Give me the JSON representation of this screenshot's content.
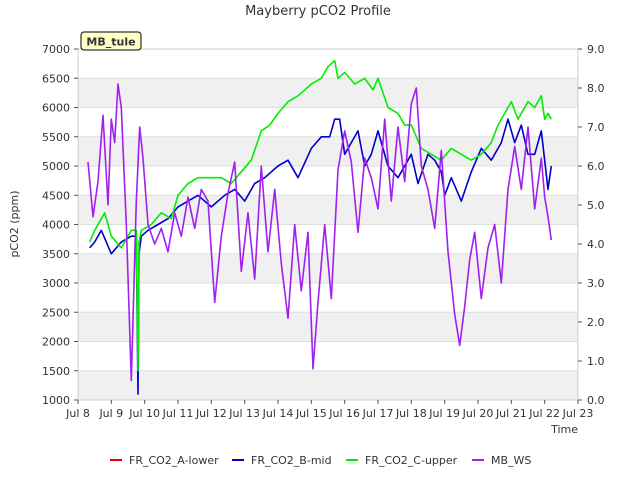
{
  "chart_data": {
    "type": "line",
    "title": "Mayberry pCO2 Profile",
    "xlabel": "Time",
    "ylabel": "pCO2 (ppm)",
    "site_label": "MB_tule",
    "xlim": [
      8,
      23
    ],
    "ylim": [
      1000,
      7000
    ],
    "y2lim": [
      0,
      9
    ],
    "x_ticks": [
      {
        "value": 8,
        "label": "Jul 8"
      },
      {
        "value": 9,
        "label": "Jul 9"
      },
      {
        "value": 10,
        "label": "Jul 10"
      },
      {
        "value": 11,
        "label": "Jul 11"
      },
      {
        "value": 12,
        "label": "Jul 12"
      },
      {
        "value": 13,
        "label": "Jul 13"
      },
      {
        "value": 14,
        "label": "Jul 14"
      },
      {
        "value": 15,
        "label": "Jul 15"
      },
      {
        "value": 16,
        "label": "Jul 16"
      },
      {
        "value": 17,
        "label": "Jul 17"
      },
      {
        "value": 18,
        "label": "Jul 18"
      },
      {
        "value": 19,
        "label": "Jul 19"
      },
      {
        "value": 20,
        "label": "Jul 20"
      },
      {
        "value": 21,
        "label": "Jul 21"
      },
      {
        "value": 22,
        "label": "Jul 22"
      },
      {
        "value": 23,
        "label": "Jul 23"
      }
    ],
    "y_ticks": [
      {
        "value": 1000,
        "label": "1000"
      },
      {
        "value": 1500,
        "label": "1500"
      },
      {
        "value": 2000,
        "label": "2000"
      },
      {
        "value": 2500,
        "label": "2500"
      },
      {
        "value": 3000,
        "label": "3000"
      },
      {
        "value": 3500,
        "label": "3500"
      },
      {
        "value": 4000,
        "label": "4000"
      },
      {
        "value": 4500,
        "label": "4500"
      },
      {
        "value": 5000,
        "label": "5000"
      },
      {
        "value": 5500,
        "label": "5500"
      },
      {
        "value": 6000,
        "label": "6000"
      },
      {
        "value": 6500,
        "label": "6500"
      },
      {
        "value": 7000,
        "label": "7000"
      }
    ],
    "y2_ticks": [
      {
        "value": 0,
        "label": "0.0"
      },
      {
        "value": 1,
        "label": "1.0"
      },
      {
        "value": 2,
        "label": "2.0"
      },
      {
        "value": 3,
        "label": "3.0"
      },
      {
        "value": 4,
        "label": "4.0"
      },
      {
        "value": 5,
        "label": "5.0"
      },
      {
        "value": 6,
        "label": "6.0"
      },
      {
        "value": 7,
        "label": "7.0"
      },
      {
        "value": 8,
        "label": "8.0"
      },
      {
        "value": 9,
        "label": "9.0"
      }
    ],
    "series": [
      {
        "name": "FR_CO2_A-lower",
        "color": "#dd0000",
        "axis": "left",
        "x": [],
        "y": []
      },
      {
        "name": "FR_CO2_B-mid",
        "color": "#0000cc",
        "axis": "left",
        "x": [
          8.35,
          8.5,
          8.7,
          9.0,
          9.3,
          9.6,
          9.75,
          9.8,
          9.83,
          9.9,
          10.1,
          10.4,
          10.7,
          11.0,
          11.3,
          11.6,
          12.0,
          12.4,
          12.7,
          13.0,
          13.3,
          13.6,
          14.0,
          14.3,
          14.6,
          15.0,
          15.3,
          15.55,
          15.7,
          15.85,
          16.0,
          16.2,
          16.4,
          16.6,
          16.8,
          17.0,
          17.3,
          17.6,
          18.0,
          18.2,
          18.5,
          18.7,
          18.9,
          19.0,
          19.2,
          19.5,
          19.8,
          20.1,
          20.4,
          20.7,
          20.9,
          21.1,
          21.3,
          21.5,
          21.7,
          21.9,
          22.1,
          22.2
        ],
        "y": [
          3600,
          3700,
          3900,
          3500,
          3700,
          3800,
          3800,
          1100,
          3500,
          3800,
          3900,
          4000,
          4100,
          4300,
          4400,
          4500,
          4300,
          4500,
          4600,
          4400,
          4700,
          4800,
          5000,
          5100,
          4800,
          5300,
          5500,
          5500,
          5800,
          5800,
          5200,
          5400,
          5600,
          5000,
          5200,
          5600,
          5000,
          4800,
          5200,
          4700,
          5200,
          5100,
          4900,
          4500,
          4800,
          4400,
          4900,
          5300,
          5100,
          5400,
          5800,
          5400,
          5700,
          5200,
          5200,
          5600,
          4600,
          5000
        ]
      },
      {
        "name": "FR_CO2_C-upper",
        "color": "#00ee00",
        "axis": "left",
        "x": [
          8.35,
          8.5,
          8.8,
          9.0,
          9.3,
          9.6,
          9.75,
          9.8,
          9.83,
          9.9,
          10.2,
          10.5,
          10.8,
          11.0,
          11.3,
          11.6,
          12.0,
          12.3,
          12.6,
          12.9,
          13.2,
          13.5,
          13.75,
          14.0,
          14.3,
          14.6,
          15.0,
          15.3,
          15.5,
          15.7,
          15.8,
          16.0,
          16.3,
          16.6,
          16.85,
          17.0,
          17.3,
          17.6,
          17.8,
          18.0,
          18.3,
          18.6,
          18.9,
          19.2,
          19.5,
          19.8,
          20.1,
          20.4,
          20.6,
          20.8,
          21.0,
          21.2,
          21.5,
          21.7,
          21.9,
          22.0,
          22.1,
          22.2
        ],
        "y": [
          3700,
          3900,
          4200,
          3800,
          3600,
          3900,
          3900,
          1500,
          3700,
          3900,
          4000,
          4200,
          4100,
          4500,
          4700,
          4800,
          4800,
          4800,
          4700,
          4900,
          5100,
          5600,
          5700,
          5900,
          6100,
          6200,
          6400,
          6500,
          6700,
          6800,
          6500,
          6600,
          6400,
          6500,
          6300,
          6500,
          6000,
          5900,
          5700,
          5700,
          5300,
          5200,
          5100,
          5300,
          5200,
          5100,
          5200,
          5400,
          5700,
          5900,
          6100,
          5800,
          6100,
          6000,
          6200,
          5800,
          5900,
          5800
        ]
      },
      {
        "name": "MB_WS",
        "color": "#a020f0",
        "axis": "right",
        "x": [
          8.3,
          8.45,
          8.6,
          8.75,
          8.9,
          9.0,
          9.1,
          9.2,
          9.3,
          9.45,
          9.6,
          9.75,
          9.85,
          9.95,
          10.1,
          10.3,
          10.5,
          10.7,
          10.9,
          11.1,
          11.3,
          11.5,
          11.7,
          11.9,
          12.1,
          12.3,
          12.5,
          12.7,
          12.9,
          13.1,
          13.3,
          13.5,
          13.7,
          13.9,
          14.1,
          14.3,
          14.5,
          14.7,
          14.9,
          15.05,
          15.2,
          15.4,
          15.6,
          15.8,
          16.0,
          16.2,
          16.4,
          16.6,
          16.8,
          17.0,
          17.2,
          17.4,
          17.6,
          17.8,
          18.0,
          18.15,
          18.3,
          18.5,
          18.7,
          18.9,
          19.1,
          19.3,
          19.45,
          19.6,
          19.75,
          19.9,
          20.1,
          20.3,
          20.5,
          20.7,
          20.9,
          21.1,
          21.3,
          21.5,
          21.7,
          21.9,
          22.0,
          22.1,
          22.2
        ],
        "y": [
          6.1,
          4.7,
          5.6,
          7.3,
          5.0,
          7.2,
          6.6,
          8.1,
          7.5,
          4.5,
          0.5,
          5.1,
          7.0,
          6.2,
          4.5,
          4.0,
          4.4,
          3.8,
          4.8,
          4.2,
          5.2,
          4.4,
          5.4,
          5.1,
          2.5,
          4.2,
          5.3,
          6.1,
          3.3,
          4.8,
          3.1,
          6.0,
          3.8,
          5.4,
          3.5,
          2.1,
          4.5,
          2.8,
          4.3,
          0.8,
          2.5,
          4.5,
          2.6,
          5.9,
          6.9,
          6.1,
          4.3,
          6.2,
          5.7,
          4.9,
          7.2,
          5.1,
          7.0,
          5.6,
          7.6,
          8.0,
          6.0,
          5.4,
          4.4,
          6.4,
          3.8,
          2.2,
          1.4,
          2.4,
          3.6,
          4.3,
          2.6,
          3.9,
          4.5,
          3.0,
          5.4,
          6.5,
          5.4,
          7.0,
          4.9,
          6.2,
          5.2,
          4.7,
          4.1
        ]
      }
    ]
  }
}
